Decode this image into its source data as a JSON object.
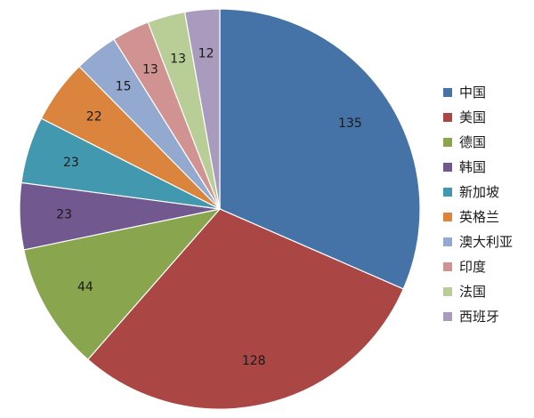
{
  "chart_data": {
    "type": "pie",
    "title": "",
    "legend_position": "right",
    "slices": [
      {
        "name": "中国",
        "value": 135,
        "color": "#4572A7"
      },
      {
        "name": "美国",
        "value": 128,
        "color": "#AA4643"
      },
      {
        "name": "德国",
        "value": 44,
        "color": "#89A54E"
      },
      {
        "name": "韩国",
        "value": 23,
        "color": "#71588F"
      },
      {
        "name": "新加坡",
        "value": 23,
        "color": "#4198AF"
      },
      {
        "name": "英格兰",
        "value": 22,
        "color": "#DB843D"
      },
      {
        "name": "澳大利亚",
        "value": 15,
        "color": "#93A9CF"
      },
      {
        "name": "印度",
        "value": 13,
        "color": "#D19392"
      },
      {
        "name": "法国",
        "value": 13,
        "color": "#B9CD96"
      },
      {
        "name": "西班牙",
        "value": 12,
        "color": "#A99BBD"
      }
    ]
  }
}
